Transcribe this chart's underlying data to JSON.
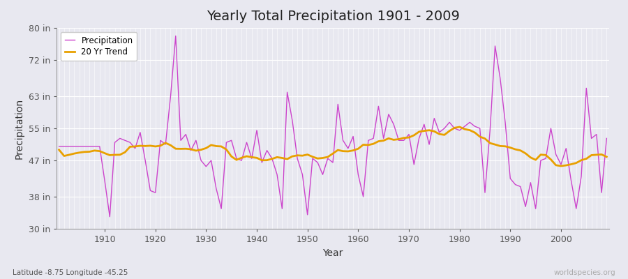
{
  "title": "Yearly Total Precipitation 1901 - 2009",
  "xlabel": "Year",
  "ylabel": "Precipitation",
  "years": [
    1901,
    1902,
    1903,
    1904,
    1905,
    1906,
    1907,
    1908,
    1909,
    1910,
    1911,
    1912,
    1913,
    1914,
    1915,
    1916,
    1917,
    1918,
    1919,
    1920,
    1921,
    1922,
    1923,
    1924,
    1925,
    1926,
    1927,
    1928,
    1929,
    1930,
    1931,
    1932,
    1933,
    1934,
    1935,
    1936,
    1937,
    1938,
    1939,
    1940,
    1941,
    1942,
    1943,
    1944,
    1945,
    1946,
    1947,
    1948,
    1949,
    1950,
    1951,
    1952,
    1953,
    1954,
    1955,
    1956,
    1957,
    1958,
    1959,
    1960,
    1961,
    1962,
    1963,
    1964,
    1965,
    1966,
    1967,
    1968,
    1969,
    1970,
    1971,
    1972,
    1973,
    1974,
    1975,
    1976,
    1977,
    1978,
    1979,
    1980,
    1981,
    1982,
    1983,
    1984,
    1985,
    1986,
    1987,
    1988,
    1989,
    1990,
    1991,
    1992,
    1993,
    1994,
    1995,
    1996,
    1997,
    1998,
    1999,
    2000,
    2001,
    2002,
    2003,
    2004,
    2005,
    2006,
    2007,
    2008,
    2009
  ],
  "precip_in": [
    50.5,
    50.5,
    50.5,
    50.5,
    50.5,
    50.5,
    50.5,
    50.5,
    50.5,
    42.0,
    33.0,
    51.5,
    52.5,
    52.0,
    51.5,
    50.0,
    54.0,
    47.0,
    39.5,
    39.0,
    52.0,
    51.0,
    63.0,
    78.0,
    52.0,
    53.5,
    49.5,
    52.0,
    47.0,
    45.5,
    47.0,
    40.0,
    35.0,
    51.5,
    52.0,
    47.5,
    47.0,
    51.5,
    47.5,
    54.5,
    46.5,
    49.5,
    47.5,
    43.5,
    35.0,
    64.0,
    57.0,
    47.5,
    43.5,
    33.5,
    47.5,
    46.5,
    43.5,
    47.5,
    46.5,
    61.0,
    52.0,
    50.0,
    53.0,
    43.5,
    38.0,
    52.0,
    52.5,
    60.5,
    52.5,
    58.5,
    56.0,
    52.0,
    52.0,
    53.5,
    46.0,
    52.5,
    56.0,
    51.0,
    57.5,
    54.0,
    55.0,
    56.5,
    55.0,
    54.5,
    55.5,
    56.5,
    55.5,
    55.0,
    39.0,
    54.5,
    75.5,
    67.5,
    56.5,
    42.5,
    41.0,
    40.5,
    35.5,
    41.5,
    35.0,
    47.0,
    47.5,
    55.0,
    48.5,
    46.0,
    50.0,
    42.0,
    35.0,
    43.0,
    65.0,
    52.5,
    53.5,
    39.0,
    52.5
  ],
  "ylim_in": [
    30,
    80
  ],
  "yticks_in": [
    30,
    38,
    47,
    55,
    63,
    72,
    80
  ],
  "ytick_labels": [
    "30 in",
    "38 in",
    "47 in",
    "55 in",
    "63 in",
    "72 in",
    "80 in"
  ],
  "xticks": [
    1910,
    1920,
    1930,
    1940,
    1950,
    1960,
    1970,
    1980,
    1990,
    2000
  ],
  "precip_color": "#cc44cc",
  "trend_color": "#e8a000",
  "bg_color": "#e8e8f0",
  "plot_bg_color": "#e8e8f0",
  "grid_color": "#ffffff",
  "trend_window": 20,
  "subtitle": "Latitude -8.75 Longitude -45.25",
  "watermark": "worldspecies.org",
  "title_fontsize": 14,
  "axis_fontsize": 10,
  "tick_fontsize": 9
}
